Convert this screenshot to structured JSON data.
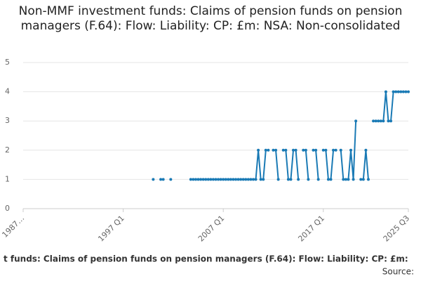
{
  "chart_data": {
    "type": "line",
    "title": "Non-MMF investment funds: Claims of pension funds on pension managers (F.64): Flow: Liability: CP: £m: NSA: Non-consolidated",
    "caption": "t funds: Claims of pension funds on pension managers (F.64): Flow: Liability: CP: £m:",
    "source": "Source:",
    "color": "#1a7ab5",
    "grid": true,
    "ylim": [
      0,
      5
    ],
    "yticks": [
      0,
      1,
      2,
      3,
      4,
      5
    ],
    "categories": [
      "1987…",
      null,
      null,
      null,
      null,
      null,
      null,
      null,
      null,
      null,
      null,
      null,
      null,
      null,
      null,
      null,
      null,
      null,
      null,
      null,
      null,
      null,
      null,
      null,
      null,
      null,
      null,
      null,
      null,
      null,
      null,
      null,
      null,
      null,
      null,
      null,
      null,
      null,
      null,
      null,
      "1997 Q1",
      null,
      null,
      null,
      null,
      null,
      null,
      null,
      null,
      null,
      null,
      null,
      null,
      null,
      null,
      null,
      null,
      null,
      null,
      null,
      null,
      null,
      null,
      null,
      null,
      null,
      null,
      null,
      null,
      null,
      null,
      null,
      null,
      null,
      null,
      null,
      null,
      null,
      null,
      null,
      "2007 Q1",
      null,
      null,
      null,
      null,
      null,
      null,
      null,
      null,
      null,
      null,
      null,
      null,
      null,
      null,
      null,
      null,
      null,
      null,
      null,
      null,
      null,
      null,
      null,
      null,
      null,
      null,
      null,
      null,
      null,
      null,
      null,
      null,
      null,
      null,
      null,
      null,
      null,
      null,
      null,
      "2017 Q1",
      null,
      null,
      null,
      null,
      null,
      null,
      null,
      null,
      null,
      null,
      null,
      null,
      null,
      null,
      null,
      null,
      null,
      null,
      null,
      null,
      null,
      null,
      null,
      null,
      null,
      null,
      null,
      null,
      null,
      null,
      null,
      null,
      null,
      "2025 Q3"
    ],
    "values": [
      null,
      null,
      null,
      null,
      null,
      null,
      null,
      null,
      null,
      null,
      null,
      null,
      null,
      null,
      null,
      null,
      null,
      null,
      null,
      null,
      null,
      null,
      null,
      null,
      null,
      null,
      null,
      null,
      null,
      null,
      null,
      null,
      null,
      null,
      null,
      null,
      null,
      null,
      null,
      null,
      null,
      null,
      null,
      null,
      null,
      null,
      null,
      null,
      null,
      null,
      null,
      null,
      1,
      null,
      null,
      1,
      1,
      null,
      null,
      1,
      null,
      null,
      null,
      null,
      null,
      null,
      null,
      1,
      1,
      1,
      1,
      1,
      1,
      1,
      1,
      1,
      1,
      1,
      1,
      1,
      1,
      1,
      1,
      1,
      1,
      1,
      1,
      1,
      1,
      1,
      1,
      1,
      1,
      1,
      2,
      1,
      1,
      2,
      2,
      null,
      2,
      2,
      1,
      null,
      2,
      2,
      1,
      1,
      2,
      2,
      1,
      null,
      2,
      2,
      1,
      null,
      2,
      2,
      1,
      null,
      2,
      2,
      1,
      1,
      2,
      2,
      null,
      2,
      1,
      1,
      1,
      2,
      1,
      3,
      null,
      1,
      1,
      2,
      1,
      null,
      3,
      3,
      3,
      3,
      3,
      4,
      3,
      3,
      4,
      4,
      4,
      4,
      4,
      4,
      4
    ]
  }
}
